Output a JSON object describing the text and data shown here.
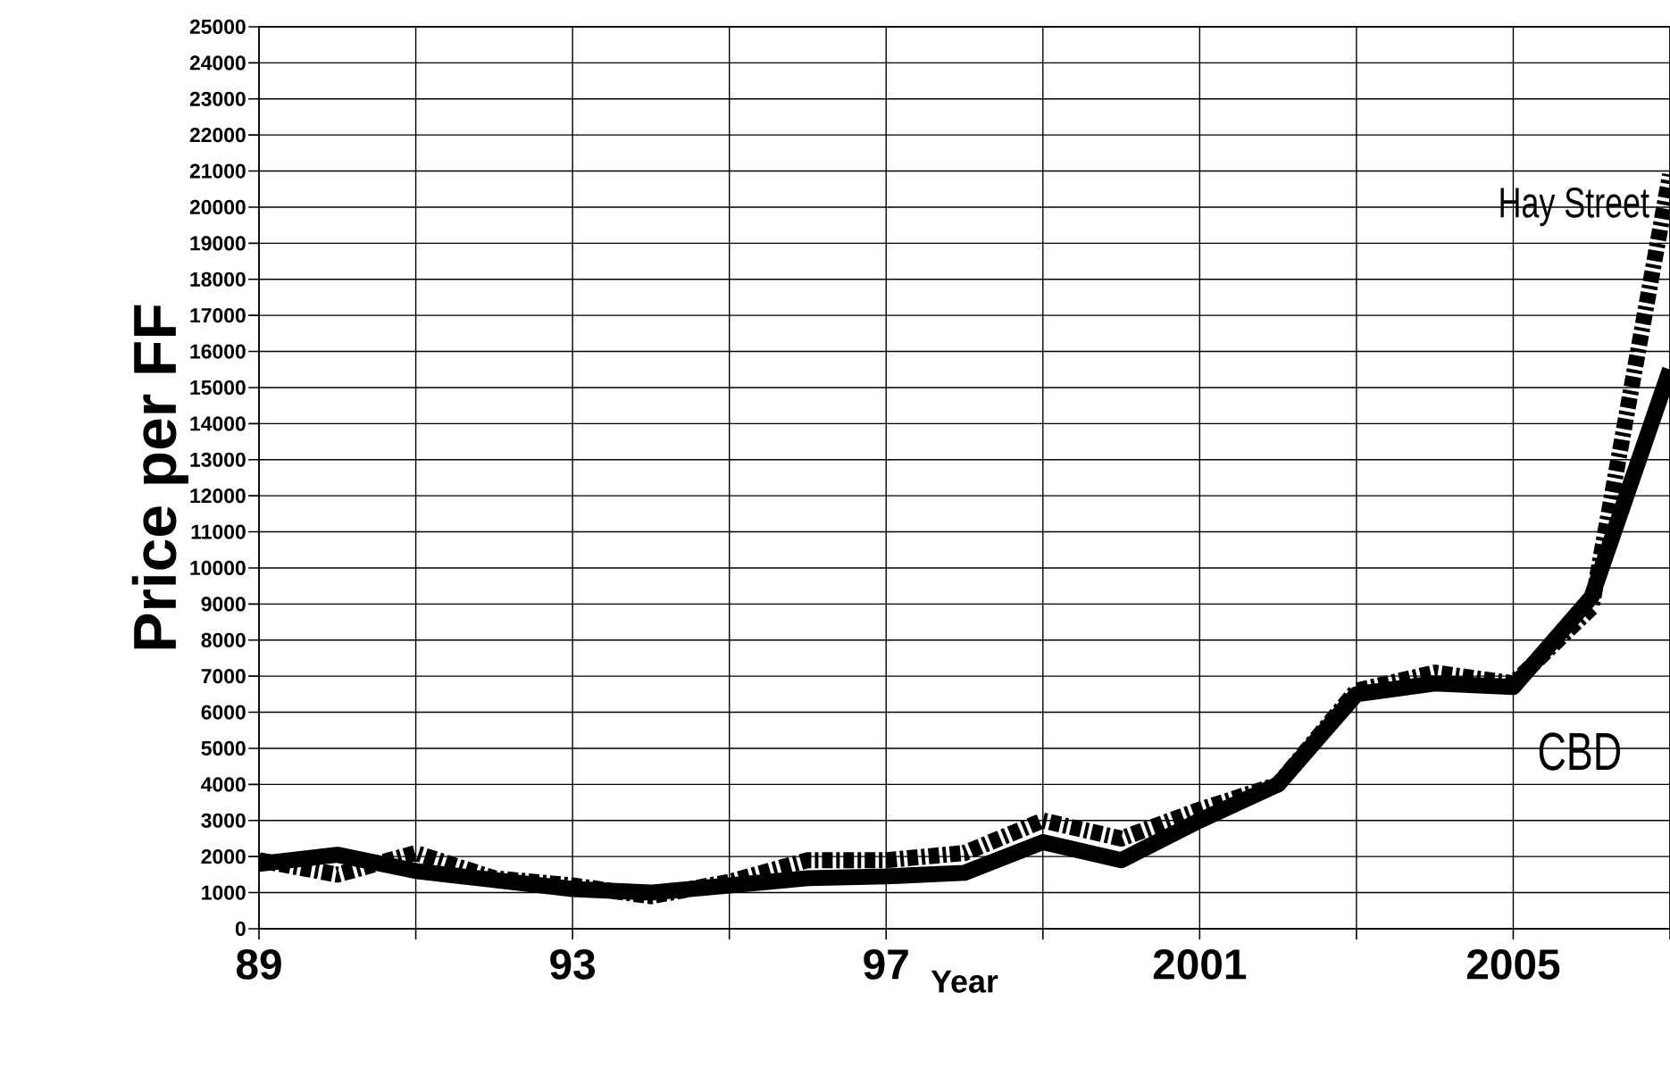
{
  "chart_data": {
    "type": "line",
    "xlabel": "Year",
    "ylabel": "Price per FF",
    "x": [
      1989,
      1990,
      1991,
      1992,
      1993,
      1994,
      1995,
      1996,
      1997,
      1998,
      1999,
      2000,
      2001,
      2002,
      2003,
      2004,
      2005,
      2006,
      2007
    ],
    "series": [
      {
        "name": "CBD",
        "color": "#000000",
        "line_style": "solid",
        "values": [
          1800,
          2050,
          1600,
          1350,
          1100,
          1000,
          1200,
          1400,
          1450,
          1550,
          2400,
          1900,
          3000,
          4000,
          6500,
          6800,
          6700,
          9200,
          15500
        ]
      },
      {
        "name": "Hay Street",
        "color": "#000000",
        "line_style": "dashed",
        "values": [
          1900,
          1500,
          2100,
          1400,
          1200,
          900,
          1300,
          1900,
          1900,
          2100,
          3000,
          2500,
          3300,
          4000,
          6600,
          7100,
          6800,
          8900,
          20900
        ]
      }
    ],
    "xlim": [
      1989,
      2007
    ],
    "xticks": [
      {
        "value": 1989,
        "label": "89"
      },
      {
        "value": 1991,
        "label": null
      },
      {
        "value": 1993,
        "label": "93"
      },
      {
        "value": 1995,
        "label": null
      },
      {
        "value": 1997,
        "label": "97"
      },
      {
        "value": 1999,
        "label": null
      },
      {
        "value": 2001,
        "label": "2001"
      },
      {
        "value": 2003,
        "label": null
      },
      {
        "value": 2005,
        "label": "2005"
      },
      {
        "value": 2007,
        "label": null
      }
    ],
    "ylim": [
      0,
      25000
    ],
    "yticks": [
      0,
      1000,
      2000,
      3000,
      4000,
      5000,
      6000,
      7000,
      8000,
      9000,
      10000,
      11000,
      12000,
      13000,
      14000,
      15000,
      16000,
      17000,
      18000,
      19000,
      20000,
      21000,
      22000,
      23000,
      24000,
      25000
    ],
    "grid": true,
    "legend": false,
    "marker": "none"
  }
}
